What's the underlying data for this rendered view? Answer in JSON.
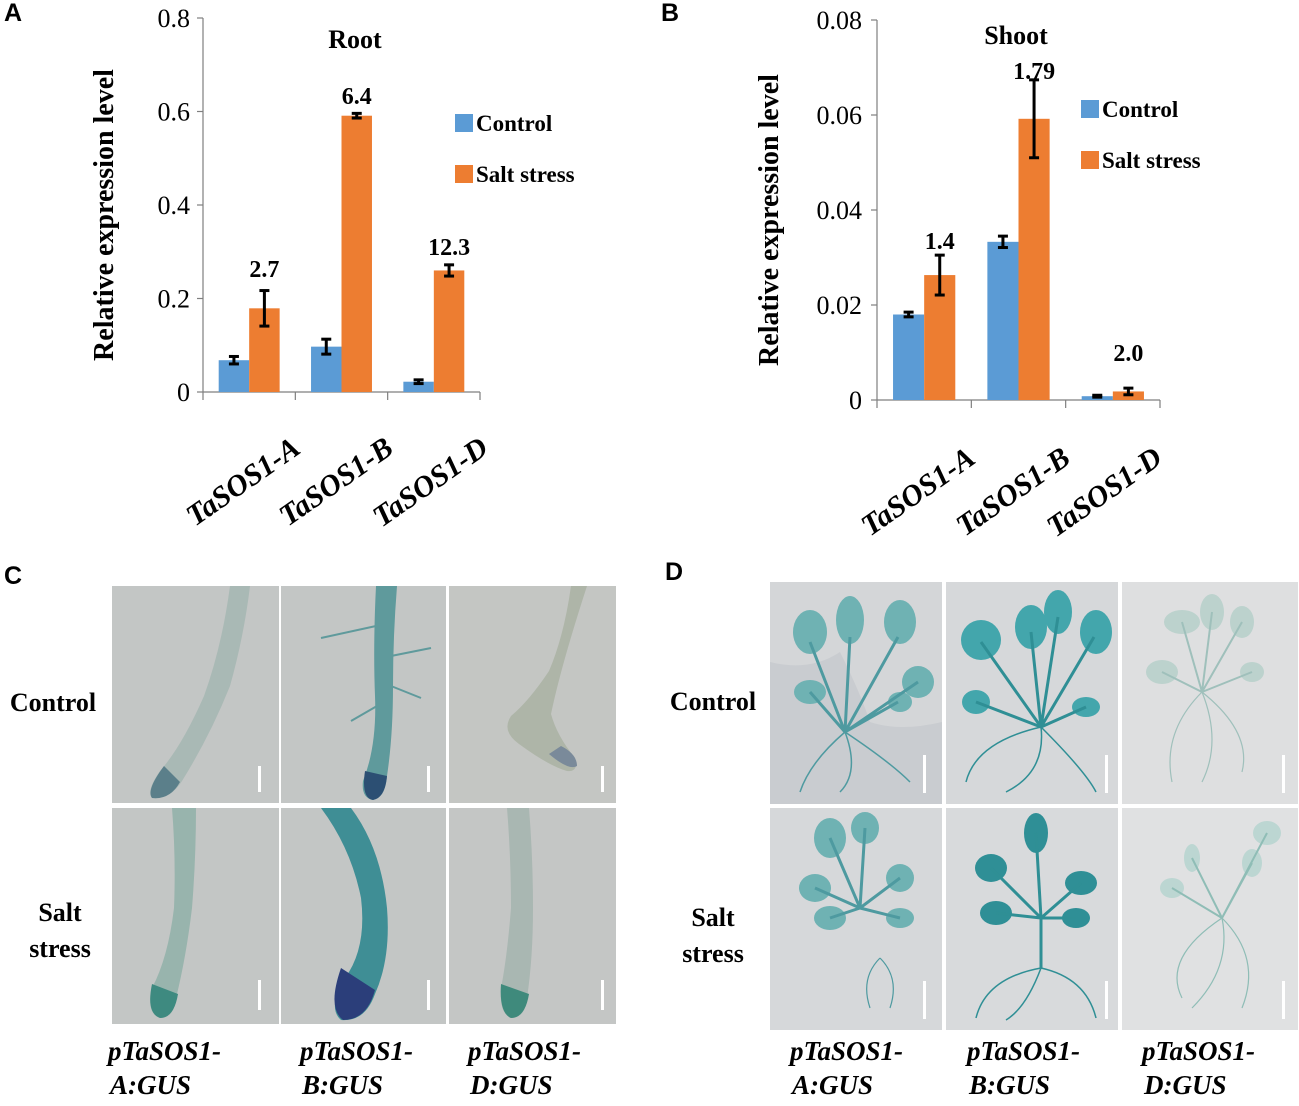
{
  "panels": {
    "a": "A",
    "b": "B",
    "c": "C",
    "d": "D"
  },
  "chart_data": [
    {
      "type": "bar",
      "title": "Root",
      "ylabel": "Relative expression level",
      "xlabel": "",
      "categories": [
        "TaSOS1-A",
        "TaSOS1-B",
        "TaSOS1-D"
      ],
      "ylim": [
        0,
        0.8
      ],
      "yticks": [
        "0",
        "0.2",
        "0.4",
        "0.6",
        "0.8"
      ],
      "legend_position": "right",
      "series": [
        {
          "name": "Control",
          "color": "#5b9bd5",
          "values": [
            0.068,
            0.097,
            0.022
          ],
          "errors": [
            0.008,
            0.016,
            0.004
          ]
        },
        {
          "name": "Salt stress",
          "color": "#ed7d31",
          "values": [
            0.179,
            0.591,
            0.26
          ],
          "errors": [
            0.038,
            0.005,
            0.012
          ]
        }
      ],
      "annotations": [
        "2.7",
        "6.4",
        "12.3"
      ]
    },
    {
      "type": "bar",
      "title": "Shoot",
      "ylabel": "Relative expression level",
      "xlabel": "",
      "categories": [
        "TaSOS1-A",
        "TaSOS1-B",
        "TaSOS1-D"
      ],
      "ylim": [
        0,
        0.08
      ],
      "yticks": [
        "0",
        "0.02",
        "0.04",
        "0.06",
        "0.08"
      ],
      "legend_position": "right",
      "series": [
        {
          "name": "Control",
          "color": "#5b9bd5",
          "values": [
            0.018,
            0.0333,
            0.0008
          ],
          "errors": [
            0.0005,
            0.0012,
            0.0002
          ]
        },
        {
          "name": "Salt stress",
          "color": "#ed7d31",
          "values": [
            0.0263,
            0.0592,
            0.0018
          ],
          "errors": [
            0.0042,
            0.0082,
            0.0007
          ]
        }
      ],
      "annotations": [
        "1.4",
        "1.79",
        "2.0"
      ]
    }
  ],
  "gus_panels": {
    "row_labels_c": [
      [
        "Control"
      ],
      [
        "Salt",
        "stress"
      ]
    ],
    "row_labels_d": [
      [
        "Control"
      ],
      [
        "Salt",
        "stress"
      ]
    ],
    "constructs": [
      [
        "pTaSOS1-",
        "A:GUS"
      ],
      [
        "pTaSOS1-",
        "B:GUS"
      ],
      [
        "pTaSOS1-",
        "D:GUS"
      ]
    ]
  },
  "colors": {
    "control": "#5b9bd5",
    "salt": "#ed7d31",
    "gus_blue": "#2a8a8e",
    "photo_bg": "#c2c5c4"
  }
}
